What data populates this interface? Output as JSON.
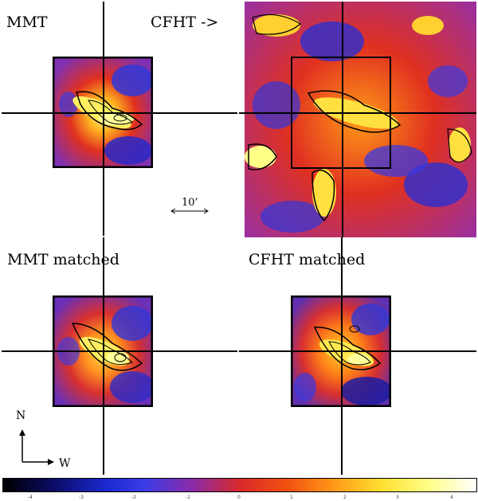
{
  "labels": {
    "mmt": "MMT",
    "cfht_arrow": "CFHT ->",
    "mmt_matched": "MMT matched",
    "cfht_matched": "CFHT matched",
    "scale": "10’",
    "north": "N",
    "west": "W"
  },
  "colorbar": {
    "ticks": [
      "-4",
      "-3",
      "-2",
      "-1",
      "0",
      "1",
      "2",
      "3",
      "4"
    ]
  },
  "colors": {
    "low": "#1c2ad2",
    "mid": "#d82a2a",
    "high": "#ffff88"
  }
}
